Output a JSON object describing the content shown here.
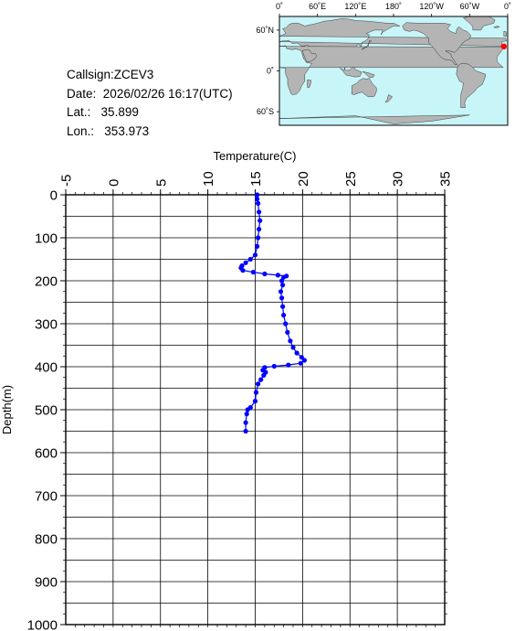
{
  "station": {
    "callsign_label": "Callsign:",
    "callsign": "ZCEV3",
    "date_label": "Date:",
    "date": "2026/02/26 16:17(UTC)",
    "lat_label": "Lat.:",
    "lat": "35.899",
    "lon_label": "Lon.:",
    "lon": "353.973"
  },
  "map": {
    "lon_labels": [
      "0˚",
      "60˚E",
      "120˚E",
      "180˚",
      "120˚W",
      "60˚W",
      "0˚"
    ],
    "lat_labels": [
      "60˚N",
      "0˚",
      "60˚S"
    ],
    "ocean_color": "#c8f5f8",
    "land_color": "#b4b4b4",
    "marker_color": "#ff0000",
    "marker": {
      "lat": 35.899,
      "lon": 353.973
    }
  },
  "chart_data": {
    "type": "line",
    "title": "",
    "xlabel": "Temperature(C)",
    "ylabel": "Depth(m)",
    "xlim": [
      -5,
      35
    ],
    "ylim": [
      0,
      1000
    ],
    "x_ticks": [
      "-5",
      "0",
      "5",
      "10",
      "15",
      "20",
      "25",
      "30",
      "35"
    ],
    "y_ticks": [
      "0",
      "100",
      "200",
      "300",
      "400",
      "500",
      "600",
      "700",
      "800",
      "900",
      "1000"
    ],
    "grid": true,
    "series": [
      {
        "color": "#0000ff",
        "points": [
          [
            15.2,
            0
          ],
          [
            15.2,
            10
          ],
          [
            15.3,
            20
          ],
          [
            15.4,
            40
          ],
          [
            15.5,
            60
          ],
          [
            15.4,
            80
          ],
          [
            15.3,
            100
          ],
          [
            15.2,
            120
          ],
          [
            15.0,
            140
          ],
          [
            14.5,
            150
          ],
          [
            14.0,
            158
          ],
          [
            13.6,
            165
          ],
          [
            13.5,
            170
          ],
          [
            13.7,
            176
          ],
          [
            14.8,
            180
          ],
          [
            16.0,
            184
          ],
          [
            17.4,
            187
          ],
          [
            18.3,
            189
          ],
          [
            18.0,
            192
          ],
          [
            17.8,
            200
          ],
          [
            17.9,
            210
          ],
          [
            17.7,
            225
          ],
          [
            17.8,
            240
          ],
          [
            17.9,
            260
          ],
          [
            18.0,
            280
          ],
          [
            18.2,
            300
          ],
          [
            18.4,
            320
          ],
          [
            18.7,
            340
          ],
          [
            19.0,
            355
          ],
          [
            19.4,
            368
          ],
          [
            19.9,
            378
          ],
          [
            20.2,
            385
          ],
          [
            19.8,
            392
          ],
          [
            18.5,
            396
          ],
          [
            17.0,
            399
          ],
          [
            16.0,
            402
          ],
          [
            15.8,
            408
          ],
          [
            16.1,
            413
          ],
          [
            15.9,
            420
          ],
          [
            15.6,
            430
          ],
          [
            15.3,
            440
          ],
          [
            15.1,
            460
          ],
          [
            15.0,
            480
          ],
          [
            14.5,
            495
          ],
          [
            14.2,
            500
          ],
          [
            14.1,
            510
          ],
          [
            14.0,
            530
          ],
          [
            14.0,
            550
          ]
        ]
      }
    ]
  }
}
